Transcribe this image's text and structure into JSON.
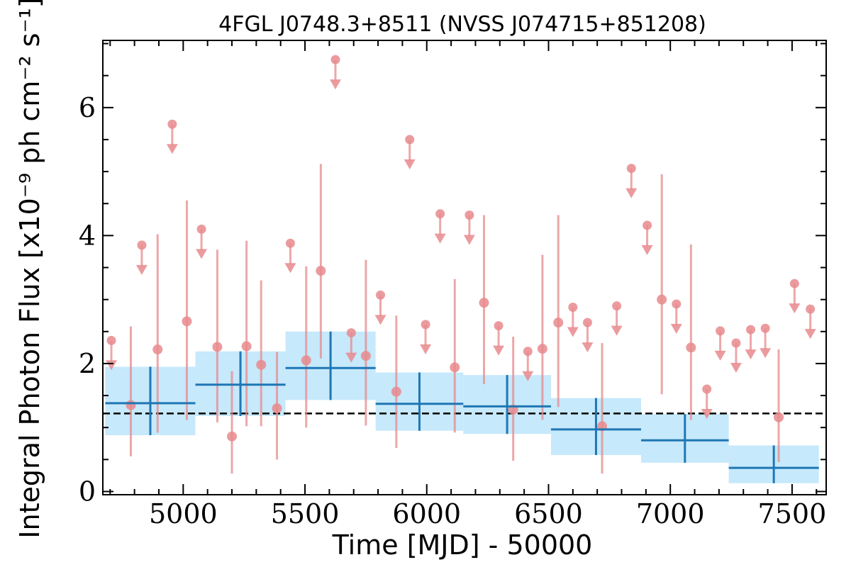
{
  "chart_data": {
    "type": "scatter",
    "title": "4FGL J0748.3+8511 (NVSS J074715+851208)",
    "xlabel": "Time [MJD] - 50000",
    "ylabel": "Integral Photon Flux [x10⁻⁹ ph cm⁻² s⁻¹]",
    "xlim": [
      4670,
      7640
    ],
    "ylim": [
      -0.05,
      7.05
    ],
    "xticks": [
      5000,
      5500,
      6000,
      6500,
      7000,
      7500
    ],
    "yticks": [
      0,
      2,
      4,
      6
    ],
    "mean_flux": 1.22,
    "colors": {
      "short_bins": "#e88a8d",
      "long_bins": "#1f77b4",
      "long_bins_fill": "#c6e9fb",
      "mean_line": "#000000"
    },
    "short_detections": [
      {
        "x": 4785,
        "y": 1.35,
        "lo": 0.55,
        "hi": 2.58
      },
      {
        "x": 4895,
        "y": 2.22,
        "lo": 0.92,
        "hi": 4.02
      },
      {
        "x": 5015,
        "y": 2.66,
        "lo": 1.12,
        "hi": 4.55
      },
      {
        "x": 5140,
        "y": 2.26,
        "lo": 1.08,
        "hi": 3.78
      },
      {
        "x": 5200,
        "y": 0.86,
        "lo": 0.28,
        "hi": 1.88
      },
      {
        "x": 5260,
        "y": 2.27,
        "lo": 1.02,
        "hi": 3.92
      },
      {
        "x": 5320,
        "y": 1.98,
        "lo": 1.02,
        "hi": 3.3
      },
      {
        "x": 5385,
        "y": 1.3,
        "lo": 0.5,
        "hi": 2.18
      },
      {
        "x": 5505,
        "y": 2.05,
        "lo": 1.0,
        "hi": 3.52
      },
      {
        "x": 5565,
        "y": 3.45,
        "lo": 2.08,
        "hi": 5.12
      },
      {
        "x": 5750,
        "y": 2.12,
        "lo": 1.03,
        "hi": 3.62
      },
      {
        "x": 5875,
        "y": 1.56,
        "lo": 0.68,
        "hi": 2.75
      },
      {
        "x": 6115,
        "y": 1.94,
        "lo": 0.92,
        "hi": 3.32
      },
      {
        "x": 6235,
        "y": 2.95,
        "lo": 1.68,
        "hi": 4.32
      },
      {
        "x": 6355,
        "y": 1.28,
        "lo": 0.48,
        "hi": 2.42
      },
      {
        "x": 6475,
        "y": 2.23,
        "lo": 1.12,
        "hi": 3.7
      },
      {
        "x": 6540,
        "y": 2.64,
        "lo": 1.32,
        "hi": 4.32
      },
      {
        "x": 6720,
        "y": 1.02,
        "lo": 0.28,
        "hi": 2.32
      },
      {
        "x": 6965,
        "y": 3.0,
        "lo": 1.52,
        "hi": 4.96
      },
      {
        "x": 7085,
        "y": 2.25,
        "lo": 1.12,
        "hi": 3.86
      },
      {
        "x": 7445,
        "y": 1.16,
        "lo": 0.46,
        "hi": 2.22
      }
    ],
    "short_upper_limits": [
      {
        "x": 4705,
        "y": 2.36
      },
      {
        "x": 4830,
        "y": 3.85
      },
      {
        "x": 4955,
        "y": 5.74
      },
      {
        "x": 5075,
        "y": 4.1
      },
      {
        "x": 5440,
        "y": 3.88
      },
      {
        "x": 5625,
        "y": 6.75
      },
      {
        "x": 5690,
        "y": 2.48
      },
      {
        "x": 5810,
        "y": 3.07
      },
      {
        "x": 5930,
        "y": 5.5
      },
      {
        "x": 5995,
        "y": 2.61
      },
      {
        "x": 6055,
        "y": 4.34
      },
      {
        "x": 6175,
        "y": 4.32
      },
      {
        "x": 6295,
        "y": 2.59
      },
      {
        "x": 6415,
        "y": 2.19
      },
      {
        "x": 6600,
        "y": 2.88
      },
      {
        "x": 6660,
        "y": 2.64
      },
      {
        "x": 6780,
        "y": 2.9
      },
      {
        "x": 6840,
        "y": 5.05
      },
      {
        "x": 6905,
        "y": 4.16
      },
      {
        "x": 7025,
        "y": 2.93
      },
      {
        "x": 7150,
        "y": 1.6
      },
      {
        "x": 7205,
        "y": 2.51
      },
      {
        "x": 7270,
        "y": 2.32
      },
      {
        "x": 7330,
        "y": 2.53
      },
      {
        "x": 7390,
        "y": 2.55
      },
      {
        "x": 7510,
        "y": 3.25
      },
      {
        "x": 7575,
        "y": 2.85
      }
    ],
    "long_bins": [
      {
        "x0": 4680,
        "x1": 5050,
        "y": 1.38,
        "lo": 0.88,
        "hi": 1.95
      },
      {
        "x0": 5050,
        "x1": 5420,
        "y": 1.67,
        "lo": 1.18,
        "hi": 2.19
      },
      {
        "x0": 5420,
        "x1": 5790,
        "y": 1.93,
        "lo": 1.43,
        "hi": 2.5
      },
      {
        "x0": 5790,
        "x1": 6150,
        "y": 1.37,
        "lo": 0.95,
        "hi": 1.86
      },
      {
        "x0": 6150,
        "x1": 6510,
        "y": 1.33,
        "lo": 0.9,
        "hi": 1.82
      },
      {
        "x0": 6510,
        "x1": 6880,
        "y": 0.97,
        "lo": 0.57,
        "hi": 1.46
      },
      {
        "x0": 6880,
        "x1": 7240,
        "y": 0.8,
        "lo": 0.45,
        "hi": 1.21
      },
      {
        "x0": 7240,
        "x1": 7610,
        "y": 0.37,
        "lo": 0.13,
        "hi": 0.72
      }
    ]
  }
}
